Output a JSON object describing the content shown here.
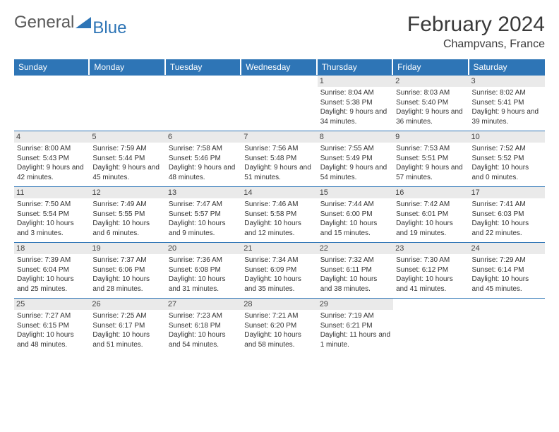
{
  "logo": {
    "general": "General",
    "blue": "Blue"
  },
  "title": {
    "month": "February 2024",
    "location": "Champvans, France"
  },
  "weekdays": [
    "Sunday",
    "Monday",
    "Tuesday",
    "Wednesday",
    "Thursday",
    "Friday",
    "Saturday"
  ],
  "colors": {
    "headerBg": "#2e75b6",
    "dayBg": "#eaeaea",
    "text": "#333"
  },
  "startOffset": 4,
  "days": [
    {
      "n": 1,
      "sunrise": "8:04 AM",
      "sunset": "5:38 PM",
      "daylight": "9 hours and 34 minutes."
    },
    {
      "n": 2,
      "sunrise": "8:03 AM",
      "sunset": "5:40 PM",
      "daylight": "9 hours and 36 minutes."
    },
    {
      "n": 3,
      "sunrise": "8:02 AM",
      "sunset": "5:41 PM",
      "daylight": "9 hours and 39 minutes."
    },
    {
      "n": 4,
      "sunrise": "8:00 AM",
      "sunset": "5:43 PM",
      "daylight": "9 hours and 42 minutes."
    },
    {
      "n": 5,
      "sunrise": "7:59 AM",
      "sunset": "5:44 PM",
      "daylight": "9 hours and 45 minutes."
    },
    {
      "n": 6,
      "sunrise": "7:58 AM",
      "sunset": "5:46 PM",
      "daylight": "9 hours and 48 minutes."
    },
    {
      "n": 7,
      "sunrise": "7:56 AM",
      "sunset": "5:48 PM",
      "daylight": "9 hours and 51 minutes."
    },
    {
      "n": 8,
      "sunrise": "7:55 AM",
      "sunset": "5:49 PM",
      "daylight": "9 hours and 54 minutes."
    },
    {
      "n": 9,
      "sunrise": "7:53 AM",
      "sunset": "5:51 PM",
      "daylight": "9 hours and 57 minutes."
    },
    {
      "n": 10,
      "sunrise": "7:52 AM",
      "sunset": "5:52 PM",
      "daylight": "10 hours and 0 minutes."
    },
    {
      "n": 11,
      "sunrise": "7:50 AM",
      "sunset": "5:54 PM",
      "daylight": "10 hours and 3 minutes."
    },
    {
      "n": 12,
      "sunrise": "7:49 AM",
      "sunset": "5:55 PM",
      "daylight": "10 hours and 6 minutes."
    },
    {
      "n": 13,
      "sunrise": "7:47 AM",
      "sunset": "5:57 PM",
      "daylight": "10 hours and 9 minutes."
    },
    {
      "n": 14,
      "sunrise": "7:46 AM",
      "sunset": "5:58 PM",
      "daylight": "10 hours and 12 minutes."
    },
    {
      "n": 15,
      "sunrise": "7:44 AM",
      "sunset": "6:00 PM",
      "daylight": "10 hours and 15 minutes."
    },
    {
      "n": 16,
      "sunrise": "7:42 AM",
      "sunset": "6:01 PM",
      "daylight": "10 hours and 19 minutes."
    },
    {
      "n": 17,
      "sunrise": "7:41 AM",
      "sunset": "6:03 PM",
      "daylight": "10 hours and 22 minutes."
    },
    {
      "n": 18,
      "sunrise": "7:39 AM",
      "sunset": "6:04 PM",
      "daylight": "10 hours and 25 minutes."
    },
    {
      "n": 19,
      "sunrise": "7:37 AM",
      "sunset": "6:06 PM",
      "daylight": "10 hours and 28 minutes."
    },
    {
      "n": 20,
      "sunrise": "7:36 AM",
      "sunset": "6:08 PM",
      "daylight": "10 hours and 31 minutes."
    },
    {
      "n": 21,
      "sunrise": "7:34 AM",
      "sunset": "6:09 PM",
      "daylight": "10 hours and 35 minutes."
    },
    {
      "n": 22,
      "sunrise": "7:32 AM",
      "sunset": "6:11 PM",
      "daylight": "10 hours and 38 minutes."
    },
    {
      "n": 23,
      "sunrise": "7:30 AM",
      "sunset": "6:12 PM",
      "daylight": "10 hours and 41 minutes."
    },
    {
      "n": 24,
      "sunrise": "7:29 AM",
      "sunset": "6:14 PM",
      "daylight": "10 hours and 45 minutes."
    },
    {
      "n": 25,
      "sunrise": "7:27 AM",
      "sunset": "6:15 PM",
      "daylight": "10 hours and 48 minutes."
    },
    {
      "n": 26,
      "sunrise": "7:25 AM",
      "sunset": "6:17 PM",
      "daylight": "10 hours and 51 minutes."
    },
    {
      "n": 27,
      "sunrise": "7:23 AM",
      "sunset": "6:18 PM",
      "daylight": "10 hours and 54 minutes."
    },
    {
      "n": 28,
      "sunrise": "7:21 AM",
      "sunset": "6:20 PM",
      "daylight": "10 hours and 58 minutes."
    },
    {
      "n": 29,
      "sunrise": "7:19 AM",
      "sunset": "6:21 PM",
      "daylight": "11 hours and 1 minute."
    }
  ],
  "labels": {
    "sunrise": "Sunrise:",
    "sunset": "Sunset:",
    "daylight": "Daylight:"
  }
}
